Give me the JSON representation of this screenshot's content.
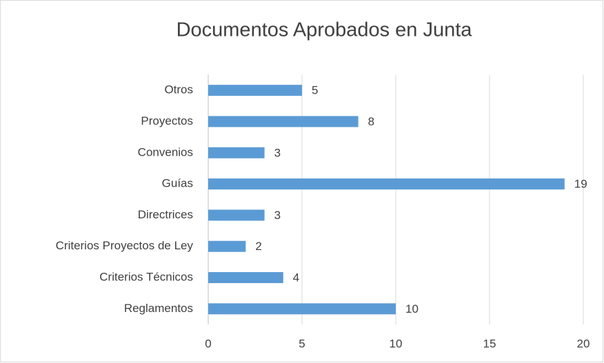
{
  "chart_data": {
    "type": "bar",
    "orientation": "horizontal",
    "title": "Documentos Aprobados en Junta",
    "categories": [
      "Otros",
      "Proyectos",
      "Convenios",
      "Guías",
      "Directrices",
      "Criterios Proyectos de Ley",
      "Criterios Técnicos",
      "Reglamentos"
    ],
    "values": [
      5,
      8,
      3,
      19,
      3,
      2,
      4,
      10
    ],
    "color": "#5b9bd5",
    "xlim": [
      0,
      20
    ],
    "xticks": [
      0,
      5,
      10,
      15,
      20
    ],
    "grid": true
  }
}
